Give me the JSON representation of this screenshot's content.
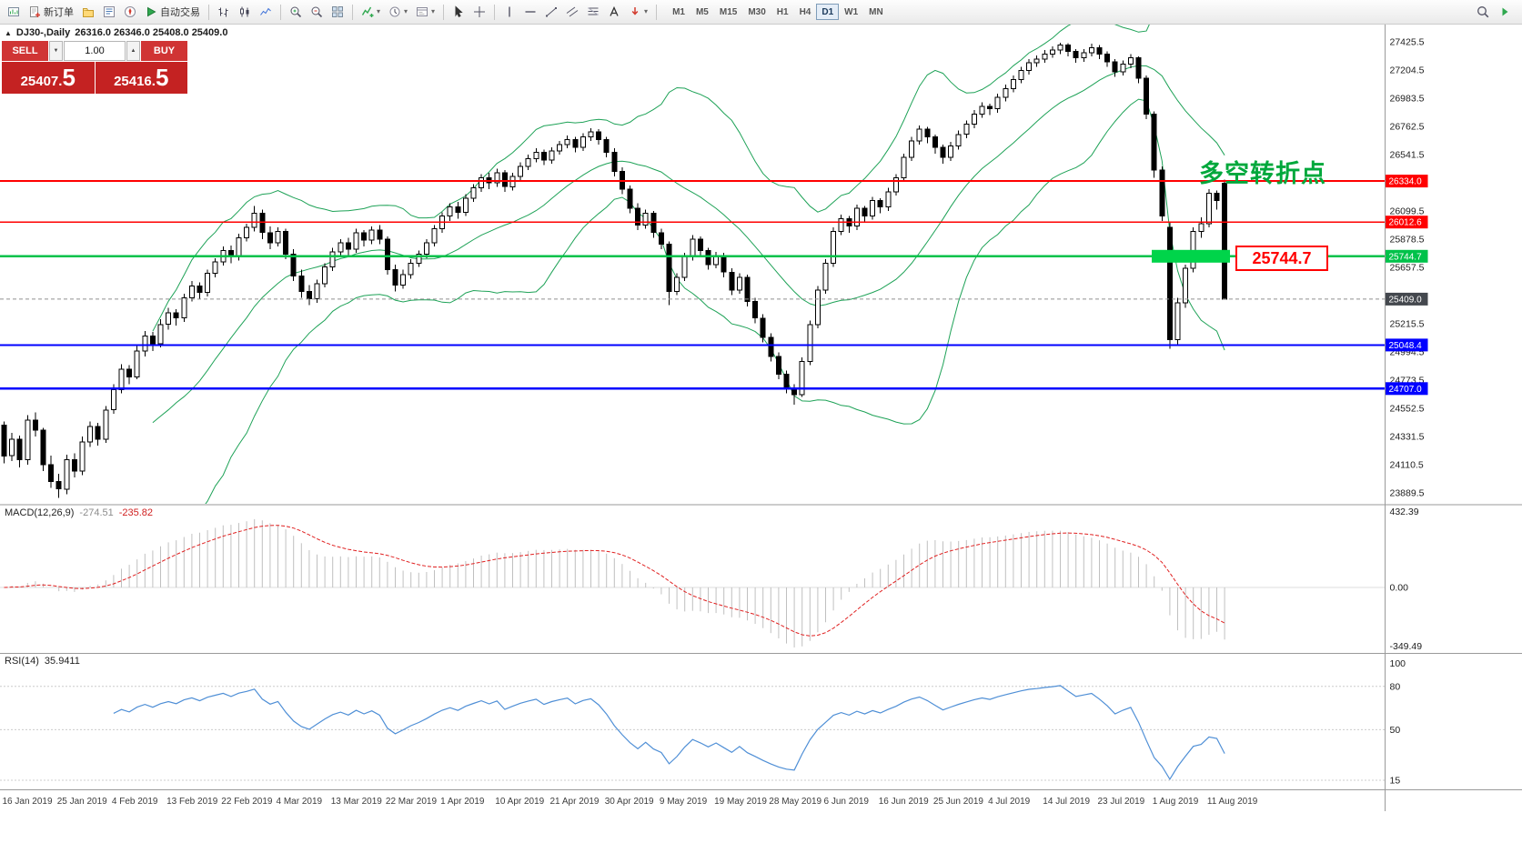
{
  "toolbar": {
    "items": [
      {
        "icon": "new-chart",
        "name": "new-chart"
      },
      {
        "icon": "new-order",
        "name": "new-order",
        "label": "新订单"
      },
      {
        "icon": "profiles",
        "name": "profiles"
      },
      {
        "icon": "market-watch",
        "name": "market-watch"
      },
      {
        "icon": "navigator",
        "name": "navigator"
      },
      {
        "icon": "autotrading",
        "name": "autotrading",
        "label": "自动交易"
      },
      {
        "type": "sep"
      },
      {
        "icon": "bars",
        "name": "bar-chart"
      },
      {
        "icon": "candles",
        "name": "candlestick-chart"
      },
      {
        "icon": "line-chart",
        "name": "line-chart"
      },
      {
        "type": "sep"
      },
      {
        "icon": "zoom-in",
        "name": "zoom-in"
      },
      {
        "icon": "zoom-out",
        "name": "zoom-out"
      },
      {
        "icon": "tile",
        "name": "tile-windows"
      },
      {
        "type": "sep"
      },
      {
        "icon": "indicators",
        "name": "indicators",
        "dd": true
      },
      {
        "icon": "periods",
        "name": "periods",
        "dd": true
      },
      {
        "icon": "templates",
        "name": "templates",
        "dd": true
      },
      {
        "type": "sep"
      },
      {
        "icon": "cursor",
        "name": "cursor"
      },
      {
        "icon": "crosshair",
        "name": "crosshair"
      },
      {
        "type": "sep"
      },
      {
        "icon": "vline",
        "name": "vertical-line-tool"
      },
      {
        "icon": "hline",
        "name": "horizontal-line-tool"
      },
      {
        "icon": "trendline",
        "name": "trendline-tool"
      },
      {
        "icon": "channel",
        "name": "channel-tool"
      },
      {
        "icon": "fibo",
        "name": "fibonacci-tool"
      },
      {
        "icon": "text",
        "name": "text-tool"
      },
      {
        "icon": "arrows",
        "name": "arrows-tool",
        "dd": true
      },
      {
        "type": "sep"
      }
    ],
    "timeframes": [
      "M1",
      "M5",
      "M15",
      "M30",
      "H1",
      "H4",
      "D1",
      "W1",
      "MN"
    ],
    "active_timeframe": "D1",
    "right_items": [
      {
        "icon": "search",
        "name": "search"
      },
      {
        "icon": "collapse",
        "name": "expand-toolbar"
      }
    ]
  },
  "header": {
    "title": "DJ30-,Daily",
    "ohlc": "26316.0 26346.0 25408.0 25409.0"
  },
  "trade_panel": {
    "sell_label": "SELL",
    "buy_label": "BUY",
    "volume": "1.00",
    "sell_price_int": "25407.",
    "sell_price_frac": "5",
    "buy_price_int": "25416.",
    "buy_price_frac": "5"
  },
  "annotations": {
    "turning_point": "多空转折点",
    "callout": "25744.7"
  },
  "hlines": [
    {
      "price": 26334.0,
      "tag": "26334.0",
      "color": "#ff0000",
      "width": 1.8
    },
    {
      "price": 26012.6,
      "tag": "26012.6",
      "color": "#ff0000",
      "width": 1.8
    },
    {
      "price": 25744.7,
      "tag": "25744.7",
      "color": "#00c24a",
      "width": 2.2
    },
    {
      "price": 25048.4,
      "tag": "25048.4",
      "color": "#0000ff",
      "width": 2.2
    },
    {
      "price": 24707.0,
      "tag": "24707.0",
      "color": "#0000ff",
      "width": 2.2
    }
  ],
  "highlight": {
    "price": 25744.7,
    "color": "#00d44a"
  },
  "current_price": {
    "value": 25409.0,
    "tag": "25409.0",
    "color": "#44484e"
  },
  "price_axis": [
    "27425.5",
    "27204.5",
    "26983.5",
    "26762.5",
    "26541.5",
    "26099.5",
    "25878.5",
    "25657.5",
    "25215.5",
    "24994.5",
    "24773.5",
    "24552.5",
    "24331.5",
    "24110.5",
    "23889.5"
  ],
  "indicators": {
    "macd": {
      "label": "MACD(12,26,9)",
      "value": "-274.51",
      "signal": "-235.82",
      "scale": [
        {
          "t": "432.39",
          "pos": "top"
        },
        {
          "t": "0.00",
          "pos": "zero"
        },
        {
          "t": "-349.49",
          "pos": "bottom"
        }
      ],
      "histogram_color": "#c0c0c0",
      "signal_color": "#e02020"
    },
    "rsi": {
      "label": "RSI(14)",
      "value": "35.9411",
      "scale": [
        {
          "v": 100,
          "t": "100"
        },
        {
          "v": 80,
          "t": "80"
        },
        {
          "v": 50,
          "t": "50"
        },
        {
          "v": 15,
          "t": "15"
        }
      ],
      "levels": [
        80,
        50,
        15
      ],
      "line_color": "#4f8fd6"
    }
  },
  "colors": {
    "bollinger": "#1ea257",
    "candle_outline": "#000000",
    "bull_fill": "#ffffff",
    "bear_fill": "#000000",
    "axis_text": "#1c1c1c",
    "separator": "#9a9a9a"
  },
  "dates": [
    "16 Jan 2019",
    "25 Jan 2019",
    "4 Feb 2019",
    "13 Feb 2019",
    "22 Feb 2019",
    "4 Mar 2019",
    "13 Mar 2019",
    "22 Mar 2019",
    "1 Apr 2019",
    "10 Apr 2019",
    "21 Apr 2019",
    "30 Apr 2019",
    "9 May 2019",
    "19 May 2019",
    "28 May 2019",
    "6 Jun 2019",
    "16 Jun 2019",
    "25 Jun 2019",
    "4 Jul 2019",
    "14 Jul 2019",
    "23 Jul 2019",
    "1 Aug 2019",
    "11 Aug 2019"
  ],
  "chart_data": {
    "type": "candlestick",
    "symbol": "DJ30-",
    "period": "Daily",
    "y_axis": {
      "min": 23889.5,
      "max": 27425.5,
      "step": 221
    },
    "indicator_params": {
      "bollinger": [
        20,
        2
      ],
      "macd": [
        12,
        26,
        9
      ],
      "rsi": [
        14
      ]
    },
    "candles": [
      [
        24420,
        24450,
        24120,
        24180
      ],
      [
        24180,
        24360,
        24140,
        24310
      ],
      [
        24310,
        24340,
        24090,
        24150
      ],
      [
        24150,
        24500,
        24110,
        24460
      ],
      [
        24460,
        24520,
        24330,
        24380
      ],
      [
        24380,
        24400,
        24060,
        24110
      ],
      [
        24110,
        24180,
        23930,
        23980
      ],
      [
        23980,
        24040,
        23850,
        23920
      ],
      [
        23920,
        24190,
        23880,
        24150
      ],
      [
        24150,
        24200,
        24010,
        24060
      ],
      [
        24060,
        24330,
        24030,
        24290
      ],
      [
        24290,
        24450,
        24250,
        24410
      ],
      [
        24410,
        24440,
        24260,
        24310
      ],
      [
        24310,
        24570,
        24280,
        24540
      ],
      [
        24540,
        24740,
        24510,
        24700
      ],
      [
        24700,
        24900,
        24670,
        24860
      ],
      [
        24860,
        24890,
        24740,
        24800
      ],
      [
        24800,
        25040,
        24780,
        25000
      ],
      [
        25000,
        25160,
        24960,
        25120
      ],
      [
        25120,
        25150,
        25000,
        25060
      ],
      [
        25060,
        25250,
        25030,
        25210
      ],
      [
        25210,
        25340,
        25170,
        25300
      ],
      [
        25300,
        25330,
        25200,
        25260
      ],
      [
        25260,
        25450,
        25230,
        25420
      ],
      [
        25420,
        25550,
        25390,
        25510
      ],
      [
        25510,
        25540,
        25410,
        25460
      ],
      [
        25460,
        25640,
        25430,
        25610
      ],
      [
        25610,
        25730,
        25580,
        25700
      ],
      [
        25700,
        25820,
        25670,
        25790
      ],
      [
        25790,
        25830,
        25690,
        25740
      ],
      [
        25740,
        25920,
        25710,
        25890
      ],
      [
        25890,
        26000,
        25860,
        25970
      ],
      [
        25970,
        26140,
        25940,
        26080
      ],
      [
        26080,
        26110,
        25880,
        25930
      ],
      [
        25930,
        25980,
        25800,
        25850
      ],
      [
        25850,
        25970,
        25820,
        25940
      ],
      [
        25940,
        25960,
        25720,
        25760
      ],
      [
        25760,
        25800,
        25550,
        25590
      ],
      [
        25590,
        25640,
        25420,
        25470
      ],
      [
        25470,
        25520,
        25360,
        25410
      ],
      [
        25410,
        25560,
        25380,
        25530
      ],
      [
        25530,
        25690,
        25500,
        25660
      ],
      [
        25660,
        25810,
        25630,
        25780
      ],
      [
        25780,
        25880,
        25740,
        25850
      ],
      [
        25850,
        25890,
        25750,
        25800
      ],
      [
        25800,
        25960,
        25770,
        25930
      ],
      [
        25930,
        25950,
        25820,
        25870
      ],
      [
        25870,
        25980,
        25840,
        25950
      ],
      [
        25950,
        25990,
        25840,
        25880
      ],
      [
        25880,
        25900,
        25600,
        25640
      ],
      [
        25640,
        25680,
        25470,
        25520
      ],
      [
        25520,
        25640,
        25490,
        25600
      ],
      [
        25600,
        25720,
        25570,
        25690
      ],
      [
        25690,
        25790,
        25660,
        25760
      ],
      [
        25760,
        25880,
        25730,
        25850
      ],
      [
        25850,
        25990,
        25820,
        25960
      ],
      [
        25960,
        26090,
        25930,
        26060
      ],
      [
        26060,
        26160,
        26020,
        26130
      ],
      [
        26130,
        26170,
        26040,
        26090
      ],
      [
        26090,
        26230,
        26060,
        26200
      ],
      [
        26200,
        26310,
        26170,
        26280
      ],
      [
        26280,
        26390,
        26250,
        26360
      ],
      [
        26360,
        26400,
        26270,
        26320
      ],
      [
        26320,
        26430,
        26290,
        26400
      ],
      [
        26400,
        26420,
        26250,
        26290
      ],
      [
        26290,
        26400,
        26260,
        26370
      ],
      [
        26370,
        26480,
        26340,
        26450
      ],
      [
        26450,
        26540,
        26420,
        26510
      ],
      [
        26510,
        26590,
        26480,
        26560
      ],
      [
        26560,
        26580,
        26460,
        26500
      ],
      [
        26500,
        26600,
        26470,
        26570
      ],
      [
        26570,
        26650,
        26540,
        26620
      ],
      [
        26620,
        26690,
        26590,
        26660
      ],
      [
        26660,
        26680,
        26560,
        26600
      ],
      [
        26600,
        26710,
        26570,
        26680
      ],
      [
        26680,
        26750,
        26650,
        26720
      ],
      [
        26720,
        26740,
        26620,
        26660
      ],
      [
        26660,
        26680,
        26520,
        26560
      ],
      [
        26560,
        26590,
        26370,
        26410
      ],
      [
        26410,
        26440,
        26230,
        26270
      ],
      [
        26270,
        26300,
        26080,
        26120
      ],
      [
        26120,
        26160,
        25950,
        25990
      ],
      [
        25990,
        26110,
        25960,
        26080
      ],
      [
        26080,
        26100,
        25890,
        25930
      ],
      [
        25930,
        25960,
        25800,
        25840
      ],
      [
        25840,
        25860,
        25360,
        25470
      ],
      [
        25470,
        25610,
        25440,
        25580
      ],
      [
        25580,
        25770,
        25550,
        25740
      ],
      [
        25740,
        25910,
        25710,
        25880
      ],
      [
        25880,
        25900,
        25750,
        25790
      ],
      [
        25790,
        25810,
        25640,
        25680
      ],
      [
        25680,
        25780,
        25650,
        25750
      ],
      [
        25750,
        25770,
        25580,
        25620
      ],
      [
        25620,
        25650,
        25440,
        25480
      ],
      [
        25480,
        25610,
        25450,
        25580
      ],
      [
        25580,
        25600,
        25350,
        25390
      ],
      [
        25390,
        25420,
        25220,
        25260
      ],
      [
        25260,
        25290,
        25070,
        25110
      ],
      [
        25110,
        25140,
        24920,
        24960
      ],
      [
        24960,
        24990,
        24780,
        24820
      ],
      [
        24820,
        24850,
        24670,
        24710
      ],
      [
        24710,
        24740,
        24580,
        24660
      ],
      [
        24660,
        24950,
        24640,
        24920
      ],
      [
        24920,
        25240,
        24890,
        25210
      ],
      [
        25210,
        25510,
        25180,
        25480
      ],
      [
        25480,
        25720,
        25450,
        25690
      ],
      [
        25690,
        25970,
        25660,
        25940
      ],
      [
        25940,
        26070,
        25910,
        26040
      ],
      [
        26040,
        26060,
        25930,
        25980
      ],
      [
        25980,
        26150,
        25950,
        26120
      ],
      [
        26120,
        26140,
        26010,
        26060
      ],
      [
        26060,
        26210,
        26030,
        26180
      ],
      [
        26180,
        26200,
        26080,
        26130
      ],
      [
        26130,
        26280,
        26100,
        26250
      ],
      [
        26250,
        26390,
        26220,
        26360
      ],
      [
        26360,
        26550,
        26330,
        26520
      ],
      [
        26520,
        26680,
        26490,
        26650
      ],
      [
        26650,
        26770,
        26620,
        26740
      ],
      [
        26740,
        26760,
        26630,
        26680
      ],
      [
        26680,
        26700,
        26550,
        26600
      ],
      [
        26600,
        26620,
        26470,
        26520
      ],
      [
        26520,
        26640,
        26490,
        26610
      ],
      [
        26610,
        26730,
        26580,
        26700
      ],
      [
        26700,
        26810,
        26670,
        26780
      ],
      [
        26780,
        26890,
        26750,
        26860
      ],
      [
        26860,
        26950,
        26830,
        26920
      ],
      [
        26920,
        26940,
        26850,
        26900
      ],
      [
        26900,
        27020,
        26870,
        26990
      ],
      [
        26990,
        27090,
        26960,
        27060
      ],
      [
        27060,
        27160,
        27030,
        27130
      ],
      [
        27130,
        27230,
        27100,
        27200
      ],
      [
        27200,
        27290,
        27170,
        27260
      ],
      [
        27260,
        27320,
        27230,
        27290
      ],
      [
        27290,
        27360,
        27260,
        27330
      ],
      [
        27330,
        27390,
        27300,
        27360
      ],
      [
        27360,
        27420,
        27330,
        27400
      ],
      [
        27400,
        27415,
        27310,
        27350
      ],
      [
        27350,
        27370,
        27260,
        27300
      ],
      [
        27300,
        27370,
        27270,
        27340
      ],
      [
        27340,
        27410,
        27310,
        27380
      ],
      [
        27380,
        27400,
        27290,
        27330
      ],
      [
        27330,
        27350,
        27230,
        27270
      ],
      [
        27270,
        27290,
        27150,
        27190
      ],
      [
        27190,
        27280,
        27160,
        27250
      ],
      [
        27250,
        27330,
        27220,
        27300
      ],
      [
        27300,
        27310,
        27100,
        27140
      ],
      [
        27140,
        27160,
        26820,
        26860
      ],
      [
        26860,
        26880,
        26360,
        26420
      ],
      [
        26420,
        26450,
        26020,
        26060
      ],
      [
        25970,
        26010,
        25020,
        25090
      ],
      [
        25090,
        25420,
        25050,
        25380
      ],
      [
        25380,
        25680,
        25340,
        25650
      ],
      [
        25650,
        25970,
        25620,
        25940
      ],
      [
        25940,
        26050,
        25890,
        26000
      ],
      [
        26000,
        26270,
        25970,
        26240
      ],
      [
        26240,
        26260,
        26110,
        26180
      ],
      [
        26316,
        26346,
        25408,
        25409
      ]
    ]
  }
}
